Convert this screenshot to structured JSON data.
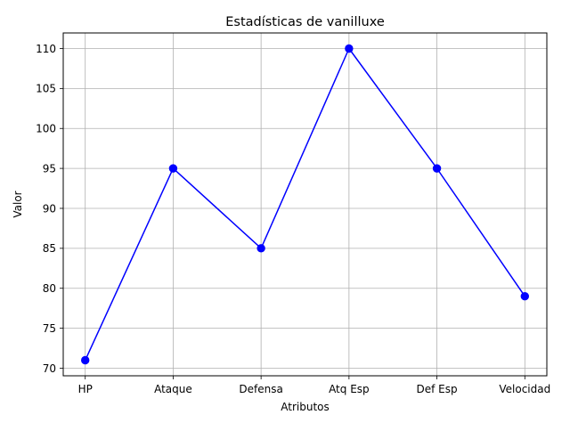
{
  "chart_data": {
    "type": "line",
    "title": "Estadísticas de vanilluxe",
    "xlabel": "Atributos",
    "ylabel": "Valor",
    "categories": [
      "HP",
      "Ataque",
      "Defensa",
      "Atq Esp",
      "Def Esp",
      "Velocidad"
    ],
    "series": [
      {
        "values": [
          71,
          95,
          85,
          110,
          95,
          79
        ],
        "color": "#0000ff",
        "marker": "circle"
      }
    ],
    "yticks": [
      70,
      75,
      80,
      85,
      90,
      95,
      100,
      105,
      110
    ],
    "ylim": [
      69.05,
      111.95
    ],
    "grid": true,
    "legend": "none"
  }
}
